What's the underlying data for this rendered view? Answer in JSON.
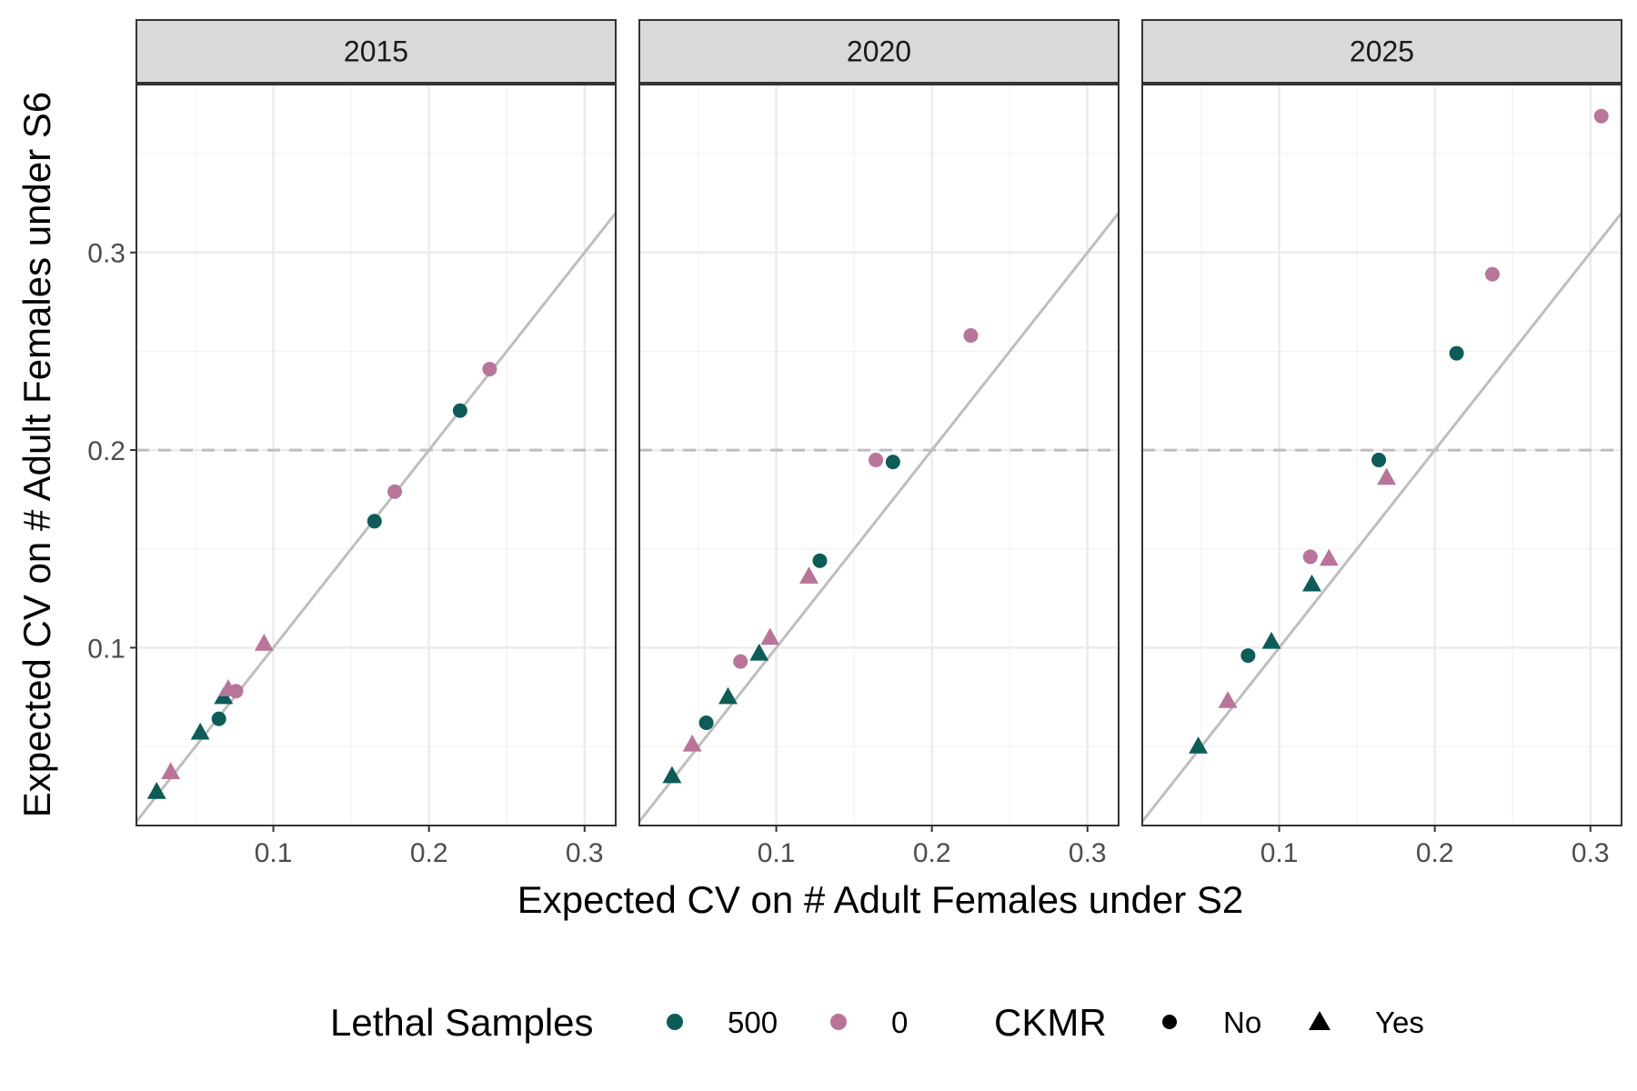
{
  "chart_data": {
    "type": "scatter",
    "xlabel": "Expected CV on # Adult Females under S2",
    "ylabel": "Expected CV on # Adult Females under S6",
    "xlim": [
      0.012,
      0.32
    ],
    "ylim": [
      0.01,
      0.385
    ],
    "x_ticks": [
      "0.1",
      "0.2",
      "0.3"
    ],
    "y_ticks": [
      "0.1",
      "0.2",
      "0.3"
    ],
    "grid": true,
    "reference_line": "y = x",
    "threshold_line": 0.2,
    "colors": {
      "500": "#0d5c57",
      "0": "#b87599",
      "ref_line": "#bebebe",
      "strip_bg": "#d9d9d9"
    },
    "legend": {
      "position": "bottom",
      "color_title": "Lethal Samples",
      "color_levels": [
        "500",
        "0"
      ],
      "shape_title": "CKMR",
      "shape_levels": [
        "No",
        "Yes"
      ]
    },
    "panels": [
      {
        "label": "2015",
        "points": [
          {
            "x": 0.025,
            "y": 0.027,
            "lethal": "500",
            "ckmr": "Yes"
          },
          {
            "x": 0.034,
            "y": 0.037,
            "lethal": "0",
            "ckmr": "Yes"
          },
          {
            "x": 0.053,
            "y": 0.057,
            "lethal": "500",
            "ckmr": "Yes"
          },
          {
            "x": 0.065,
            "y": 0.064,
            "lethal": "500",
            "ckmr": "No"
          },
          {
            "x": 0.068,
            "y": 0.075,
            "lethal": "500",
            "ckmr": "Yes"
          },
          {
            "x": 0.071,
            "y": 0.079,
            "lethal": "0",
            "ckmr": "Yes"
          },
          {
            "x": 0.076,
            "y": 0.078,
            "lethal": "0",
            "ckmr": "No"
          },
          {
            "x": 0.094,
            "y": 0.102,
            "lethal": "0",
            "ckmr": "Yes"
          },
          {
            "x": 0.165,
            "y": 0.164,
            "lethal": "500",
            "ckmr": "No"
          },
          {
            "x": 0.178,
            "y": 0.179,
            "lethal": "0",
            "ckmr": "No"
          },
          {
            "x": 0.22,
            "y": 0.22,
            "lethal": "500",
            "ckmr": "No"
          },
          {
            "x": 0.239,
            "y": 0.241,
            "lethal": "0",
            "ckmr": "No"
          }
        ]
      },
      {
        "label": "2020",
        "points": [
          {
            "x": 0.033,
            "y": 0.035,
            "lethal": "500",
            "ckmr": "Yes"
          },
          {
            "x": 0.046,
            "y": 0.051,
            "lethal": "0",
            "ckmr": "Yes"
          },
          {
            "x": 0.055,
            "y": 0.062,
            "lethal": "500",
            "ckmr": "No"
          },
          {
            "x": 0.069,
            "y": 0.075,
            "lethal": "500",
            "ckmr": "Yes"
          },
          {
            "x": 0.077,
            "y": 0.093,
            "lethal": "0",
            "ckmr": "No"
          },
          {
            "x": 0.089,
            "y": 0.097,
            "lethal": "500",
            "ckmr": "Yes"
          },
          {
            "x": 0.096,
            "y": 0.105,
            "lethal": "0",
            "ckmr": "Yes"
          },
          {
            "x": 0.121,
            "y": 0.136,
            "lethal": "0",
            "ckmr": "Yes"
          },
          {
            "x": 0.128,
            "y": 0.144,
            "lethal": "500",
            "ckmr": "No"
          },
          {
            "x": 0.164,
            "y": 0.195,
            "lethal": "0",
            "ckmr": "No"
          },
          {
            "x": 0.175,
            "y": 0.194,
            "lethal": "500",
            "ckmr": "No"
          },
          {
            "x": 0.225,
            "y": 0.258,
            "lethal": "0",
            "ckmr": "No"
          }
        ]
      },
      {
        "label": "2025",
        "points": [
          {
            "x": 0.048,
            "y": 0.05,
            "lethal": "500",
            "ckmr": "Yes"
          },
          {
            "x": 0.067,
            "y": 0.073,
            "lethal": "0",
            "ckmr": "Yes"
          },
          {
            "x": 0.08,
            "y": 0.096,
            "lethal": "500",
            "ckmr": "No"
          },
          {
            "x": 0.095,
            "y": 0.103,
            "lethal": "500",
            "ckmr": "Yes"
          },
          {
            "x": 0.12,
            "y": 0.146,
            "lethal": "0",
            "ckmr": "No"
          },
          {
            "x": 0.121,
            "y": 0.132,
            "lethal": "500",
            "ckmr": "Yes"
          },
          {
            "x": 0.132,
            "y": 0.145,
            "lethal": "0",
            "ckmr": "Yes"
          },
          {
            "x": 0.164,
            "y": 0.195,
            "lethal": "500",
            "ckmr": "No"
          },
          {
            "x": 0.169,
            "y": 0.186,
            "lethal": "0",
            "ckmr": "Yes"
          },
          {
            "x": 0.214,
            "y": 0.249,
            "lethal": "500",
            "ckmr": "No"
          },
          {
            "x": 0.237,
            "y": 0.289,
            "lethal": "0",
            "ckmr": "No"
          },
          {
            "x": 0.307,
            "y": 0.369,
            "lethal": "0",
            "ckmr": "No"
          }
        ]
      }
    ]
  }
}
